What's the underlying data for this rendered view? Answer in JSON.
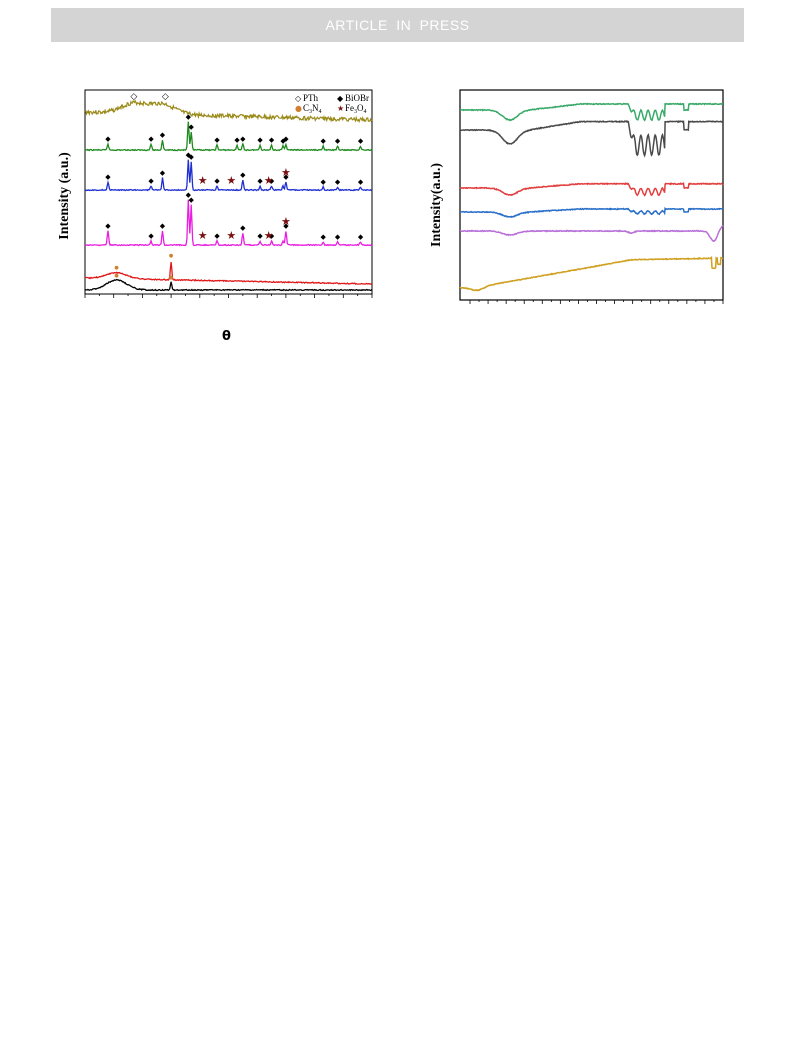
{
  "header": {
    "banner": "ARTICLE IN PRESS"
  },
  "colors": {
    "banner_bg": "#d4d4d4",
    "olive": "#9a8a1a",
    "green": "#1e8a1e",
    "blue": "#1f2fd0",
    "magenta": "#e81ee0",
    "red": "#e01818",
    "black": "#000000",
    "ftir_green": "#3aaa6a",
    "ftir_gray": "#4a4a4a",
    "ftir_red": "#e24040",
    "ftir_blue": "#2a70c8",
    "ftir_purple": "#b870d8",
    "ftir_gold": "#d0a020",
    "fe3o4_star": "#7a1010"
  },
  "chart_data": [
    {
      "type": "line",
      "ylabel": "Intensity (a.u.)",
      "xlabel": "θ",
      "grid": false,
      "legend": {
        "placement": "top-right",
        "entries": [
          {
            "marker": "◇",
            "label": "PTh"
          },
          {
            "marker": "◆",
            "label": "BiOBr"
          },
          {
            "marker": "●",
            "label": "C",
            "sub": "3",
            "tail": "N",
            "sub2": "4"
          },
          {
            "marker": "★",
            "label": "Fe",
            "sub": "3",
            "tail": "O",
            "sub2": "4"
          }
        ]
      },
      "x_range": [
        0,
        100
      ],
      "series": [
        {
          "color_key": "olive",
          "offset": 96,
          "base_noise": 2,
          "peaks": [],
          "humps": [
            {
              "x": 17,
              "w": 6,
              "h": 10
            },
            {
              "x": 27,
              "w": 6,
              "h": 10
            }
          ],
          "markers": [
            {
              "x": 17,
              "symbol": "◇"
            },
            {
              "x": 28,
              "symbol": "◇"
            }
          ]
        },
        {
          "color_key": "green",
          "offset": 70,
          "base_noise": 0.5,
          "peaks": [
            {
              "x": 8,
              "h": 6
            },
            {
              "x": 23,
              "h": 6
            },
            {
              "x": 27,
              "h": 10
            },
            {
              "x": 36,
              "h": 28
            },
            {
              "x": 37,
              "h": 18
            },
            {
              "x": 46,
              "h": 5
            },
            {
              "x": 53,
              "h": 5
            },
            {
              "x": 55,
              "h": 6
            },
            {
              "x": 61,
              "h": 5
            },
            {
              "x": 65,
              "h": 5
            },
            {
              "x": 69,
              "h": 4
            },
            {
              "x": 70,
              "h": 6
            },
            {
              "x": 83,
              "h": 4
            },
            {
              "x": 88,
              "h": 4
            },
            {
              "x": 96,
              "h": 4
            }
          ],
          "markers": [
            {
              "x": 8,
              "symbol": "◆"
            },
            {
              "x": 23,
              "symbol": "◆"
            },
            {
              "x": 27,
              "symbol": "◆"
            },
            {
              "x": 36,
              "symbol": "◆"
            },
            {
              "x": 37,
              "symbol": "◆"
            },
            {
              "x": 46,
              "symbol": "◆"
            },
            {
              "x": 53,
              "symbol": "◆"
            },
            {
              "x": 55,
              "symbol": "◆"
            },
            {
              "x": 61,
              "symbol": "◆"
            },
            {
              "x": 65,
              "symbol": "◆"
            },
            {
              "x": 69,
              "symbol": "◆"
            },
            {
              "x": 70,
              "symbol": "◆"
            },
            {
              "x": 83,
              "symbol": "◆"
            },
            {
              "x": 88,
              "symbol": "◆"
            },
            {
              "x": 96,
              "symbol": "◆"
            }
          ]
        },
        {
          "color_key": "blue",
          "offset": 70,
          "base_noise": 0.5,
          "peaks": [
            {
              "x": 8,
              "h": 8
            },
            {
              "x": 23,
              "h": 4
            },
            {
              "x": 27,
              "h": 12
            },
            {
              "x": 36,
              "h": 30
            },
            {
              "x": 37,
              "h": 28
            },
            {
              "x": 46,
              "h": 4
            },
            {
              "x": 55,
              "h": 10
            },
            {
              "x": 61,
              "h": 4
            },
            {
              "x": 65,
              "h": 4
            },
            {
              "x": 69,
              "h": 4
            },
            {
              "x": 70,
              "h": 8
            },
            {
              "x": 83,
              "h": 3
            },
            {
              "x": 88,
              "h": 3
            },
            {
              "x": 96,
              "h": 3
            }
          ],
          "markers": [
            {
              "x": 8,
              "symbol": "◆"
            },
            {
              "x": 23,
              "symbol": "◆"
            },
            {
              "x": 27,
              "symbol": "◆"
            },
            {
              "x": 36,
              "symbol": "◆"
            },
            {
              "x": 37,
              "symbol": "◆"
            },
            {
              "x": 46,
              "symbol": "◆"
            },
            {
              "x": 55,
              "symbol": "◆"
            },
            {
              "x": 61,
              "symbol": "◆"
            },
            {
              "x": 65,
              "symbol": "◆"
            },
            {
              "x": 70,
              "symbol": "◆"
            },
            {
              "x": 83,
              "symbol": "◆"
            },
            {
              "x": 88,
              "symbol": "◆"
            },
            {
              "x": 96,
              "symbol": "◆"
            },
            {
              "x": 41,
              "symbol": "★"
            },
            {
              "x": 51,
              "symbol": "★"
            },
            {
              "x": 64,
              "symbol": "★"
            },
            {
              "x": 70,
              "symbol": "★"
            }
          ]
        },
        {
          "color_key": "magenta",
          "offset": 70,
          "base_noise": 0.5,
          "peaks": [
            {
              "x": 8,
              "h": 14
            },
            {
              "x": 23,
              "h": 4
            },
            {
              "x": 27,
              "h": 14
            },
            {
              "x": 36,
              "h": 45
            },
            {
              "x": 37,
              "h": 40
            },
            {
              "x": 46,
              "h": 4
            },
            {
              "x": 55,
              "h": 12
            },
            {
              "x": 61,
              "h": 4
            },
            {
              "x": 65,
              "h": 4
            },
            {
              "x": 69,
              "h": 4
            },
            {
              "x": 70,
              "h": 14
            },
            {
              "x": 83,
              "h": 3
            },
            {
              "x": 88,
              "h": 3
            },
            {
              "x": 96,
              "h": 3
            }
          ],
          "markers": [
            {
              "x": 8,
              "symbol": "◆"
            },
            {
              "x": 23,
              "symbol": "◆"
            },
            {
              "x": 27,
              "symbol": "◆"
            },
            {
              "x": 36,
              "symbol": "◆"
            },
            {
              "x": 37,
              "symbol": "◆"
            },
            {
              "x": 46,
              "symbol": "◆"
            },
            {
              "x": 55,
              "symbol": "◆"
            },
            {
              "x": 61,
              "symbol": "◆"
            },
            {
              "x": 65,
              "symbol": "◆"
            },
            {
              "x": 70,
              "symbol": "◆"
            },
            {
              "x": 83,
              "symbol": "◆"
            },
            {
              "x": 88,
              "symbol": "◆"
            },
            {
              "x": 96,
              "symbol": "◆"
            },
            {
              "x": 41,
              "symbol": "★"
            },
            {
              "x": 51,
              "symbol": "★"
            },
            {
              "x": 64,
              "symbol": "★"
            },
            {
              "x": 70,
              "symbol": "★"
            }
          ]
        },
        {
          "color_key": "red",
          "offset": 70,
          "base_noise": 0.5,
          "peaks": [
            {
              "x": 30,
              "h": 18
            }
          ],
          "humps": [
            {
              "x": 11,
              "w": 5,
              "h": 6
            }
          ],
          "markers": [
            {
              "x": 11,
              "symbol": "●"
            },
            {
              "x": 30,
              "symbol": "●"
            }
          ]
        },
        {
          "color_key": "black",
          "offset": 70,
          "base_noise": 0.5,
          "peaks": [
            {
              "x": 30,
              "h": 8
            }
          ],
          "humps": [
            {
              "x": 11,
              "w": 5,
              "h": 10
            }
          ],
          "markers": [
            {
              "x": 11,
              "symbol": "●"
            },
            {
              "x": 30,
              "symbol": "●"
            }
          ]
        }
      ]
    },
    {
      "type": "line",
      "ylabel": "Intensity(a.u.)",
      "xlabel": "",
      "grid": false,
      "x_range": [
        0,
        100
      ],
      "series": [
        {
          "color_key": "ftir_green",
          "offset": 92,
          "pattern": "ftir_full",
          "scale": 1.0
        },
        {
          "color_key": "ftir_gray",
          "offset": 82,
          "pattern": "ftir_full_deep",
          "scale": 1.4
        },
        {
          "color_key": "ftir_red",
          "offset": 58,
          "pattern": "ftir_full",
          "scale": 0.7
        },
        {
          "color_key": "ftir_blue",
          "offset": 45,
          "pattern": "ftir_small",
          "scale": 0.5
        },
        {
          "color_key": "ftir_purple",
          "offset": 32,
          "pattern": "ftir_flat",
          "scale": 0.4
        },
        {
          "color_key": "ftir_gold",
          "offset": 6,
          "pattern": "ftir_rise",
          "scale": 1.0
        }
      ]
    }
  ]
}
